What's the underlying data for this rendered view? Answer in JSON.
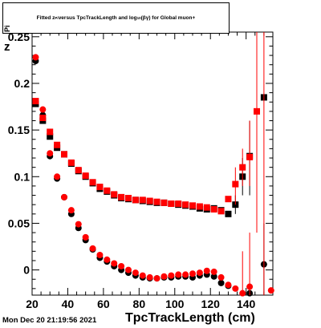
{
  "title": {
    "t1": "Fitted  z",
    "t1sub": "Pi",
    "t2": "  versus TpcTrackLength and log",
    "t2sub": "10",
    "t3": "(βγ) for Global muon+"
  },
  "ylabel": {
    "main": "z",
    "sub": "Pi"
  },
  "xlabel": "TpcTrackLength (cm)",
  "timestamp": "Mon Dec 20 21:19:56 2021",
  "colors": {
    "black": "#000000",
    "red": "#ff0000"
  },
  "chart_data": {
    "type": "scatter",
    "xlim": [
      20,
      155
    ],
    "ylim": [
      -0.027,
      0.255
    ],
    "xticks": [
      20,
      40,
      60,
      80,
      100,
      120,
      140
    ],
    "yticks": [
      0,
      0.05,
      0.1,
      0.15,
      0.2,
      0.25
    ],
    "ytick_labels": [
      "0",
      "0.05",
      "0.1",
      "0.15",
      "0.2",
      "0.25"
    ],
    "series": [
      {
        "marker": "square",
        "color": "black",
        "points": [
          [
            22,
            0.178
          ],
          [
            26,
            0.16
          ],
          [
            30,
            0.143
          ],
          [
            34,
            0.131
          ],
          [
            38,
            0.124
          ],
          [
            42,
            0.114
          ],
          [
            46,
            0.106
          ],
          [
            50,
            0.1
          ],
          [
            54,
            0.093
          ],
          [
            58,
            0.087
          ],
          [
            62,
            0.084
          ],
          [
            66,
            0.08
          ],
          [
            70,
            0.077
          ],
          [
            74,
            0.076
          ],
          [
            78,
            0.075
          ],
          [
            82,
            0.074
          ],
          [
            86,
            0.073
          ],
          [
            90,
            0.072
          ],
          [
            94,
            0.072
          ],
          [
            98,
            0.071
          ],
          [
            102,
            0.07
          ],
          [
            106,
            0.069
          ],
          [
            110,
            0.068
          ],
          [
            114,
            0.066
          ],
          [
            118,
            0.065
          ],
          [
            122,
            0.066
          ],
          [
            126,
            0.064
          ],
          [
            130,
            0.06
          ],
          [
            134,
            0.07
          ],
          [
            138,
            0.1
          ],
          [
            142,
            0.122
          ],
          [
            150,
            0.185
          ]
        ],
        "errors": [
          [
            134,
            0.06,
            0.08
          ],
          [
            138,
            0.08,
            0.12
          ],
          [
            142,
            0.08,
            0.16
          ]
        ]
      },
      {
        "marker": "circle",
        "color": "black",
        "points": [
          [
            22,
            0.224
          ],
          [
            26,
            0.166
          ],
          [
            30,
            0.122
          ],
          [
            34,
            0.098
          ],
          [
            38,
            0.078
          ],
          [
            42,
            0.06
          ],
          [
            46,
            0.045
          ],
          [
            50,
            0.032
          ],
          [
            54,
            0.022
          ],
          [
            58,
            0.013
          ],
          [
            62,
            0.009
          ],
          [
            66,
            0.004
          ],
          [
            70,
            0.0
          ],
          [
            74,
            -0.003
          ],
          [
            78,
            -0.006
          ],
          [
            82,
            -0.008
          ],
          [
            86,
            -0.009
          ],
          [
            90,
            -0.009
          ],
          [
            94,
            -0.008
          ],
          [
            98,
            -0.008
          ],
          [
            102,
            -0.007
          ],
          [
            106,
            -0.007
          ],
          [
            110,
            -0.008
          ],
          [
            114,
            -0.006
          ],
          [
            118,
            -0.005
          ],
          [
            122,
            -0.007
          ],
          [
            126,
            -0.014
          ],
          [
            130,
            -0.017
          ],
          [
            142,
            -0.025
          ],
          [
            150,
            0.006
          ]
        ],
        "errors": [
          [
            150,
            -0.03,
            0.05
          ]
        ]
      },
      {
        "marker": "square",
        "color": "red",
        "points": [
          [
            22,
            0.181
          ],
          [
            26,
            0.163
          ],
          [
            30,
            0.148
          ],
          [
            34,
            0.134
          ],
          [
            38,
            0.124
          ],
          [
            42,
            0.115
          ],
          [
            46,
            0.107
          ],
          [
            50,
            0.101
          ],
          [
            54,
            0.094
          ],
          [
            58,
            0.089
          ],
          [
            62,
            0.085
          ],
          [
            66,
            0.081
          ],
          [
            70,
            0.078
          ],
          [
            74,
            0.077
          ],
          [
            78,
            0.075
          ],
          [
            82,
            0.075
          ],
          [
            86,
            0.074
          ],
          [
            90,
            0.073
          ],
          [
            94,
            0.072
          ],
          [
            98,
            0.071
          ],
          [
            102,
            0.071
          ],
          [
            106,
            0.07
          ],
          [
            110,
            0.069
          ],
          [
            114,
            0.068
          ],
          [
            118,
            0.067
          ],
          [
            122,
            0.065
          ],
          [
            126,
            0.063
          ],
          [
            130,
            0.076
          ],
          [
            134,
            0.092
          ],
          [
            138,
            0.11
          ],
          [
            142,
            0.121
          ],
          [
            146,
            0.17
          ]
        ],
        "errors": [
          [
            134,
            0.07,
            0.11
          ],
          [
            138,
            0.09,
            0.13
          ],
          [
            142,
            0.09,
            0.16
          ],
          [
            146,
            0.04,
            0.26
          ]
        ]
      },
      {
        "marker": "circle",
        "color": "red",
        "points": [
          [
            22,
            0.228
          ],
          [
            26,
            0.172
          ],
          [
            30,
            0.125
          ],
          [
            34,
            0.1
          ],
          [
            38,
            0.078
          ],
          [
            42,
            0.064
          ],
          [
            46,
            0.049
          ],
          [
            50,
            0.035
          ],
          [
            54,
            0.023
          ],
          [
            58,
            0.016
          ],
          [
            62,
            0.011
          ],
          [
            66,
            0.007
          ],
          [
            70,
            0.004
          ],
          [
            74,
            0.0
          ],
          [
            78,
            -0.003
          ],
          [
            82,
            -0.006
          ],
          [
            86,
            -0.008
          ],
          [
            90,
            -0.009
          ],
          [
            94,
            -0.007
          ],
          [
            98,
            -0.006
          ],
          [
            102,
            -0.005
          ],
          [
            106,
            -0.005
          ],
          [
            110,
            -0.004
          ],
          [
            114,
            -0.003
          ],
          [
            118,
            -0.001
          ],
          [
            122,
            -0.002
          ],
          [
            126,
            -0.008
          ],
          [
            130,
            -0.016
          ],
          [
            134,
            -0.02
          ],
          [
            138,
            -0.025
          ],
          [
            142,
            -0.018
          ],
          [
            154,
            -0.022
          ]
        ],
        "errors": [
          [
            138,
            -0.03,
            0.02
          ],
          [
            142,
            -0.03,
            0.04
          ],
          [
            150,
            -0.03,
            0.26
          ]
        ]
      }
    ]
  }
}
